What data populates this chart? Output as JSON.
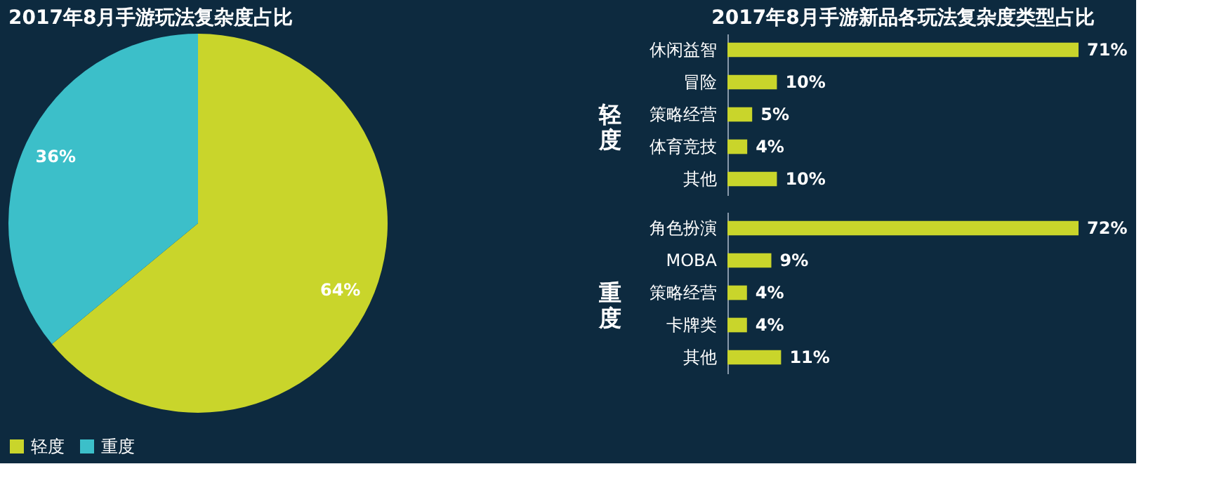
{
  "chart_data": [
    {
      "type": "pie",
      "title": "2017年8月手游玩法复杂度占比",
      "categories": [
        "轻度",
        "重度"
      ],
      "values": [
        64,
        36
      ],
      "colors": [
        "#c9d52b",
        "#3cbfc9"
      ],
      "value_labels": [
        "64%",
        "36%"
      ],
      "legend": "bottom"
    },
    {
      "type": "bar",
      "orientation": "horizontal",
      "title": "2017年8月手游新品各玩法复杂度类型占比",
      "ylabel": "轻度",
      "categories": [
        "休闲益智",
        "冒险",
        "策略经营",
        "体育竞技",
        "其他"
      ],
      "values": [
        71,
        10,
        5,
        4,
        10
      ],
      "color": "#c9d52b",
      "value_labels": [
        "71%",
        "10%",
        "5%",
        "4%",
        "10%"
      ],
      "grid": false
    },
    {
      "type": "bar",
      "orientation": "horizontal",
      "ylabel": "重度",
      "categories": [
        "角色扮演",
        "MOBA",
        "策略经营",
        "卡牌类",
        "其他"
      ],
      "values": [
        72,
        9,
        4,
        4,
        11
      ],
      "color": "#c9d52b",
      "value_labels": [
        "72%",
        "9%",
        "4%",
        "4%",
        "11%"
      ],
      "grid": false
    }
  ]
}
